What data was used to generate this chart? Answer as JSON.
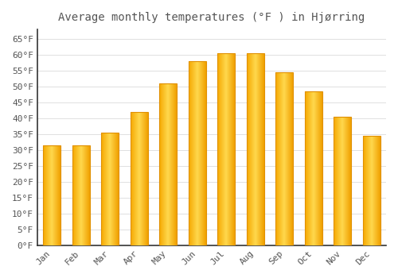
{
  "title": "Average monthly temperatures (°F ) in Hjørring",
  "months": [
    "Jan",
    "Feb",
    "Mar",
    "Apr",
    "May",
    "Jun",
    "Jul",
    "Aug",
    "Sep",
    "Oct",
    "Nov",
    "Dec"
  ],
  "values": [
    31.5,
    31.5,
    35.5,
    42.0,
    51.0,
    58.0,
    60.5,
    60.5,
    54.5,
    48.5,
    40.5,
    34.5
  ],
  "bar_color_left": "#F5A800",
  "bar_color_center": "#FFD84D",
  "bar_color_right": "#F5A800",
  "bar_edge_color": "#E09000",
  "background_color": "#FFFFFF",
  "grid_color": "#E0E0E0",
  "spine_color": "#333333",
  "text_color": "#555555",
  "ytick_labels": [
    "0°F",
    "5°F",
    "10°F",
    "15°F",
    "20°F",
    "25°F",
    "30°F",
    "35°F",
    "40°F",
    "45°F",
    "50°F",
    "55°F",
    "60°F",
    "65°F"
  ],
  "ytick_values": [
    0,
    5,
    10,
    15,
    20,
    25,
    30,
    35,
    40,
    45,
    50,
    55,
    60,
    65
  ],
  "ylim": [
    0,
    68
  ],
  "title_fontsize": 10,
  "tick_fontsize": 8,
  "figsize": [
    5.0,
    3.5
  ],
  "dpi": 100,
  "bar_width": 0.6
}
